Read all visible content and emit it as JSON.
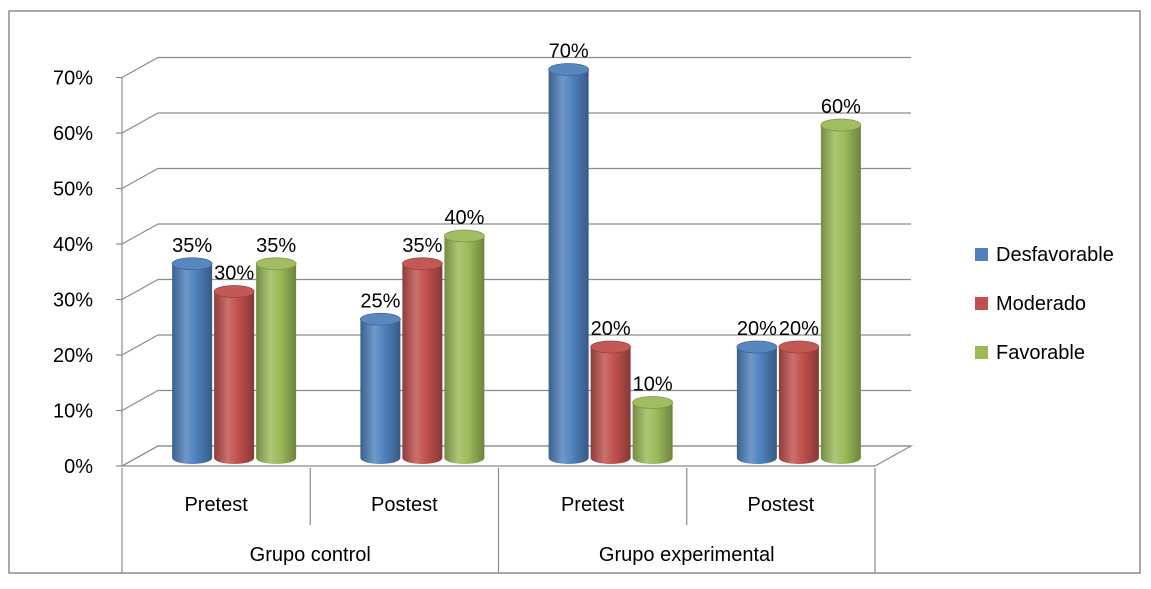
{
  "chart_data": {
    "type": "bar",
    "title": "",
    "xlabel": "",
    "ylabel": "",
    "ylim": [
      0,
      0.7
    ],
    "yticks": [
      "0%",
      "10%",
      "20%",
      "30%",
      "40%",
      "50%",
      "60%",
      "70%"
    ],
    "grid": true,
    "legend_position": "right",
    "groups": [
      {
        "label": "Grupo control",
        "categories": [
          "Pretest",
          "Postest"
        ]
      },
      {
        "label": "Grupo experimental",
        "categories": [
          "Pretest",
          "Postest"
        ]
      }
    ],
    "categories": [
      "Pretest",
      "Postest",
      "Pretest",
      "Postest"
    ],
    "series": [
      {
        "name": "Desfavorable",
        "color": "#4F81BD",
        "values": [
          0.35,
          0.25,
          0.7,
          0.2
        ],
        "labels": [
          "35%",
          "25%",
          "70%",
          "20%"
        ]
      },
      {
        "name": "Moderado",
        "color": "#C0504D",
        "values": [
          0.3,
          0.35,
          0.2,
          0.2
        ],
        "labels": [
          "30%",
          "35%",
          "20%",
          "20%"
        ]
      },
      {
        "name": "Favorable",
        "color": "#9BBB59",
        "values": [
          0.35,
          0.4,
          0.1,
          0.6
        ],
        "labels": [
          "35%",
          "40%",
          "10%",
          "60%"
        ]
      }
    ]
  }
}
